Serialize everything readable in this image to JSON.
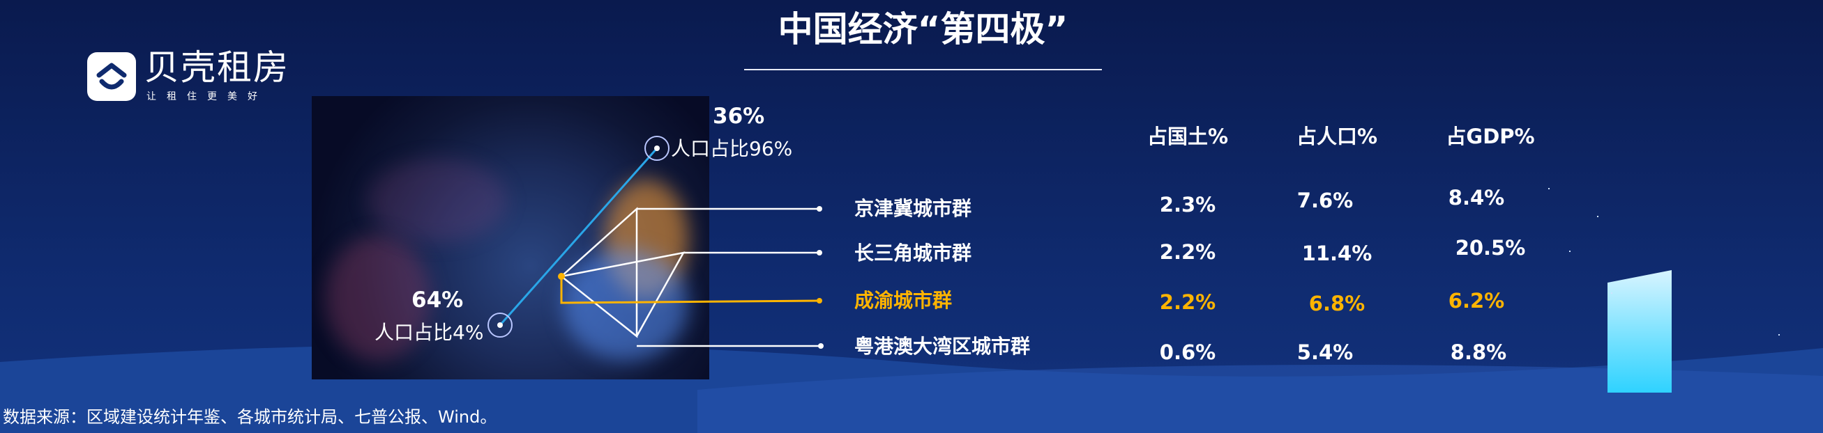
{
  "title": "中国经济“第四极”",
  "logo": {
    "name": "贝壳租房",
    "slogan": "让租住更美好"
  },
  "map": {
    "east": {
      "percent": "36%",
      "population": "人口占比96%"
    },
    "west": {
      "percent": "64%",
      "population": "人口占比4%"
    }
  },
  "table": {
    "headers": [
      "占国土%",
      "占人口%",
      "占GDP%"
    ],
    "rows": [
      {
        "name": "京津冀城市群",
        "values": [
          "2.3%",
          "7.6%",
          "8.4%"
        ],
        "highlight": false
      },
      {
        "name": "长三角城市群",
        "values": [
          "2.2%",
          "11.4%",
          "20.5%"
        ],
        "highlight": false
      },
      {
        "name": "成渝城市群",
        "values": [
          "2.2%",
          "6.8%",
          "6.2%"
        ],
        "highlight": true
      },
      {
        "name": "粤港澳大湾区城市群",
        "values": [
          "0.6%",
          "5.4%",
          "8.8%"
        ],
        "highlight": false
      }
    ]
  },
  "source": "数据来源：区域建设统计年鉴、各城市统计局、七普公报、Wind。",
  "colors": {
    "highlight": "#ffb400",
    "background": "#0f2a6e",
    "divide_line": "#2aa6e8"
  }
}
